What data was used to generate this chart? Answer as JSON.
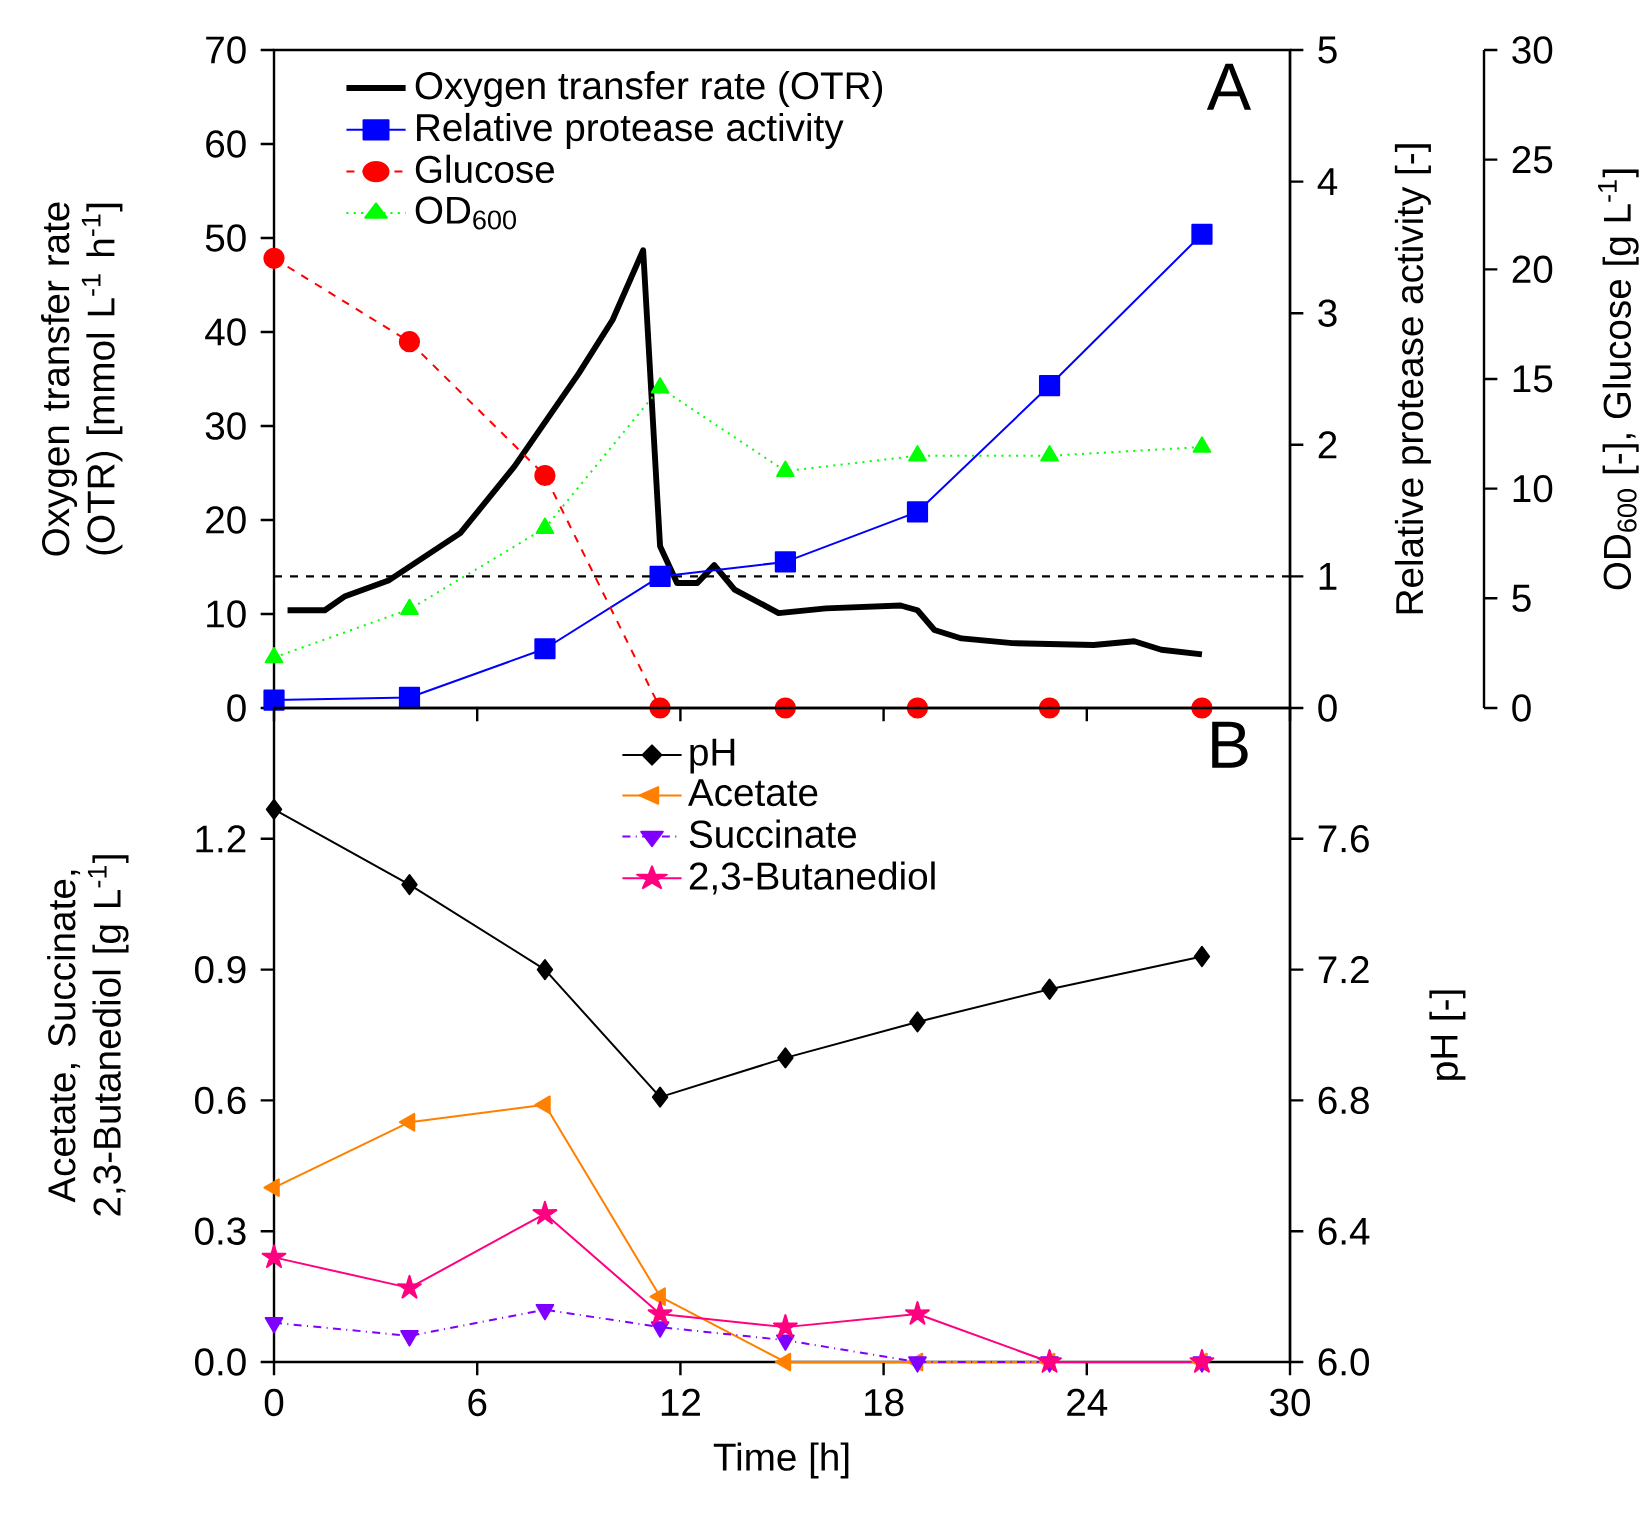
{
  "chart_data": [
    {
      "type": "line",
      "title": "A",
      "x": [
        0,
        4,
        8,
        11.4,
        15.1,
        19,
        22.9,
        27.4
      ],
      "xlim": [
        0,
        30
      ],
      "xticks": [
        0,
        6,
        12,
        18,
        24,
        30
      ],
      "ylim": [
        0,
        70
      ],
      "yticks": [
        0,
        10,
        20,
        30,
        40,
        50,
        60,
        70
      ],
      "ylabel": "Oxygen transfer rate (OTR) [mmol L$^{-1}$ h$^{-1}$]",
      "y2lim": [
        0,
        5
      ],
      "y2ticks": [
        0,
        1,
        2,
        3,
        4,
        5
      ],
      "y2label": "Relative protease activity [-]",
      "y3lim": [
        0,
        30
      ],
      "y3ticks": [
        0,
        5,
        10,
        15,
        20,
        25,
        30
      ],
      "y3label": "OD$_{600}$ [-], Glucose [g L$^{-1}$]",
      "tick_labels": "y",
      "legend": "top left",
      "ref_lines": [
        {
          "axis": "y2",
          "value": 1,
          "color": "#000000",
          "line_style": "dashed"
        }
      ],
      "series": [
        {
          "name": "Oxygen transfer rate (OTR)",
          "color": "#000000",
          "marker": "none",
          "line_style": "solid",
          "x": [
            0.4,
            1.5,
            2.1,
            3.4,
            5.5,
            7.1,
            9.0,
            10.0,
            10.9,
            11.4,
            11.9,
            12.5,
            13.0,
            13.6,
            14.9,
            16.3,
            18.5,
            19.0,
            19.5,
            20.3,
            21.8,
            24.2,
            25.4,
            26.2,
            27.4
          ],
          "values": [
            10.4,
            10.4,
            11.9,
            13.6,
            18.6,
            25.7,
            35.6,
            41.3,
            48.7,
            17.2,
            13.3,
            13.3,
            15.2,
            12.6,
            10.1,
            10.6,
            10.9,
            10.4,
            8.3,
            7.4,
            6.9,
            6.7,
            7.1,
            6.2,
            5.7
          ]
        },
        {
          "name": "Relative protease activity",
          "color": "#0000ff",
          "marker": "square",
          "line_style": "solid",
          "axis": "y2",
          "values": [
            0.06,
            0.08,
            0.45,
            1.0,
            1.11,
            1.49,
            2.45,
            3.6
          ]
        },
        {
          "name": "Glucose",
          "color": "#ff0000",
          "marker": "circle",
          "line_style": "dashed",
          "axis": "y3",
          "values": [
            20.5,
            16.7,
            10.6,
            0,
            0,
            0,
            0,
            0
          ]
        },
        {
          "name": "OD$_{600}$",
          "color": "#00ff00",
          "marker": "triangle",
          "line_style": "dotted",
          "axis": "y3",
          "values": [
            2.3,
            4.5,
            8.2,
            14.6,
            10.8,
            11.5,
            11.5,
            11.9
          ]
        }
      ]
    },
    {
      "type": "line",
      "title": "B",
      "x": [
        0,
        4,
        8,
        11.4,
        15.1,
        19,
        22.9,
        27.4
      ],
      "xlim": [
        0,
        30
      ],
      "xticks": [
        0,
        6,
        12,
        18,
        24,
        30
      ],
      "xlabel": "Time [h]",
      "ylim": [
        0,
        1.5
      ],
      "yticks": [
        {
          "value": 0,
          "label": "0.0"
        },
        0.3,
        0.6,
        0.9,
        1.2
      ],
      "ylabel": "Acetate, Succinate, 2,3-Butanediol [g L$^{-1}$]",
      "y2lim": [
        6,
        8
      ],
      "y2ticks": [
        {
          "value": 6,
          "label": "6.0"
        },
        6.4,
        6.8,
        7.2,
        7.6
      ],
      "y2label": "pH [-]",
      "legend": "top",
      "series": [
        {
          "name": "pH",
          "color": "#000000",
          "marker": "diamond",
          "line_style": "solid",
          "axis": "y2",
          "values": [
            7.69,
            7.46,
            7.2,
            6.81,
            6.93,
            7.04,
            7.14,
            7.24
          ]
        },
        {
          "name": "Acetate",
          "color": "#ff8000",
          "marker": "triangle-left",
          "line_style": "solid",
          "values": [
            0.4,
            0.55,
            0.59,
            0.15,
            0,
            0,
            0,
            0
          ]
        },
        {
          "name": "Succinate",
          "color": "#8000ff",
          "marker": "triangle-down",
          "line_style": "dashdot",
          "values": [
            0.09,
            0.06,
            0.12,
            0.08,
            0.05,
            0,
            0,
            0
          ]
        },
        {
          "name": "2,3-Butanediol",
          "color": "#ff0080",
          "marker": "star",
          "line_style": "solid",
          "values": [
            0.24,
            0.17,
            0.34,
            0.11,
            0.08,
            0.11,
            0,
            0
          ]
        }
      ]
    }
  ]
}
